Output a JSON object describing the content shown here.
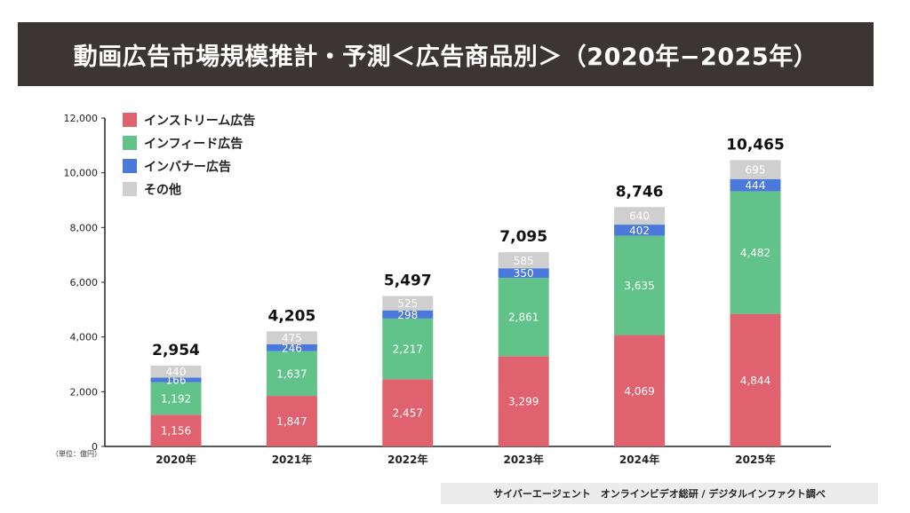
{
  "header": {
    "title": "動画広告市場規模推計・予測＜広告商品別＞（2020年−2025年）"
  },
  "footer": {
    "source": "サイバーエージェント　オンラインビデオ総研 / デジタルインファクト調べ"
  },
  "chart_data": {
    "type": "bar",
    "stacked": true,
    "title": "動画広告市場規模推計・予測＜広告商品別＞（2020年−2025年）",
    "unit_label": "（単位：億円）",
    "categories": [
      "2020年",
      "2021年",
      "2022年",
      "2023年",
      "2024年",
      "2025年"
    ],
    "series": [
      {
        "name": "インストリーム広告",
        "color": "#e0626f",
        "values": [
          1156,
          1847,
          2457,
          3299,
          4069,
          4844
        ]
      },
      {
        "name": "インフィード広告",
        "color": "#62c38a",
        "values": [
          1192,
          1637,
          2217,
          2861,
          3635,
          4482
        ]
      },
      {
        "name": "インバナー広告",
        "color": "#4a78db",
        "values": [
          166,
          246,
          298,
          350,
          402,
          444
        ]
      },
      {
        "name": "その他",
        "color": "#cfcfcf",
        "values": [
          440,
          475,
          525,
          585,
          640,
          695
        ]
      }
    ],
    "totals": [
      2954,
      4205,
      5497,
      7095,
      8746,
      10465
    ],
    "yticks": [
      0,
      2000,
      4000,
      6000,
      8000,
      10000,
      12000
    ],
    "ylim": [
      0,
      12000
    ],
    "grid": false,
    "legend_position": "top-left"
  }
}
